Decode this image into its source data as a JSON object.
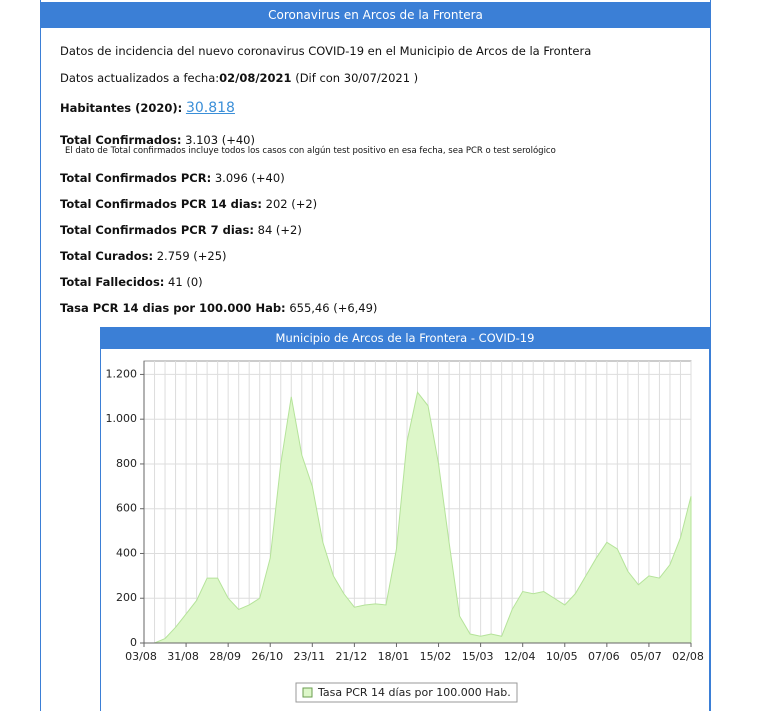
{
  "header": {
    "title": "Coronavirus en Arcos de la Frontera"
  },
  "intro": "Datos de incidencia del nuevo coronavirus COVID-19 en el Municipio de Arcos de la Frontera",
  "updated": {
    "label": "Datos actualizados a fecha:",
    "date": "02/08/2021",
    "diff": "(Dif con 30/07/2021 )"
  },
  "population": {
    "label": "Habitantes (2020):",
    "value": "30.818"
  },
  "stats": [
    {
      "label": "Total Confirmados:",
      "value": "3.103 (+40)"
    },
    {
      "label": "Total Confirmados PCR:",
      "value": "3.096 (+40)"
    },
    {
      "label": "Total Confirmados PCR 14 dias:",
      "value": "202 (+2)"
    },
    {
      "label": "Total Confirmados PCR 7 dias:",
      "value": "84 (+2)"
    },
    {
      "label": "Total Curados:",
      "value": "2.759 (+25)"
    },
    {
      "label": "Total Fallecidos:",
      "value": "41 (0)"
    },
    {
      "label": "Tasa PCR 14 dias por 100.000 Hab:",
      "value": "655,46 (+6,49)"
    }
  ],
  "note": "El dato de Total confirmados incluye todos los casos con algún test positivo en esa fecha, sea PCR o test serológico",
  "chart_data": {
    "type": "area",
    "title": "Municipio de Arcos de la Frontera - COVID-19",
    "categories": [
      "03/08",
      null,
      null,
      null,
      "31/08",
      null,
      null,
      null,
      "28/09",
      null,
      null,
      null,
      "26/10",
      null,
      null,
      null,
      "23/11",
      null,
      null,
      null,
      "21/12",
      null,
      null,
      null,
      "18/01",
      null,
      null,
      null,
      "15/02",
      null,
      null,
      null,
      "15/03",
      null,
      null,
      null,
      "12/04",
      null,
      null,
      null,
      "10/05",
      null,
      null,
      null,
      "07/06",
      null,
      null,
      null,
      "05/07",
      null,
      null,
      null,
      "02/08"
    ],
    "series": [
      {
        "name": "Tasa PCR 14 días por 100.000 Hab.",
        "color": "#ddf7c9",
        "stroke": "#b5e39a",
        "values": [
          0,
          0,
          20,
          70,
          130,
          190,
          290,
          290,
          200,
          150,
          170,
          200,
          380,
          800,
          1100,
          840,
          700,
          450,
          300,
          220,
          160,
          170,
          175,
          170,
          420,
          900,
          1120,
          1060,
          800,
          450,
          120,
          40,
          30,
          40,
          30,
          150,
          230,
          220,
          230,
          200,
          170,
          220,
          300,
          380,
          450,
          420,
          320,
          260,
          300,
          290,
          350,
          470,
          655.46
        ]
      }
    ],
    "ylim": [
      0,
      1260
    ],
    "yticks": [
      0,
      200,
      400,
      600,
      800,
      {
        "value": 1000,
        "label": "1.000"
      },
      {
        "value": 1200,
        "label": "1.200"
      }
    ],
    "grid": true,
    "legend": "bottom"
  }
}
